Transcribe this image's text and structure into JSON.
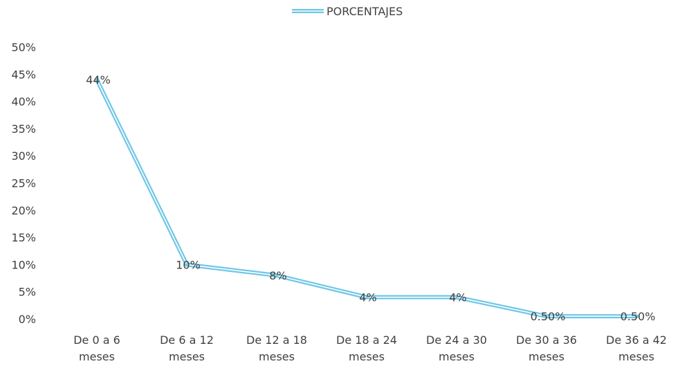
{
  "chart_data": {
    "type": "line",
    "title": "",
    "xlabel": "",
    "ylabel": "",
    "categories": [
      [
        "De 0 a 6",
        "meses"
      ],
      [
        "De 6 a 12",
        "meses"
      ],
      [
        "De 12 a 18",
        "meses"
      ],
      [
        "De 18 a 24",
        "meses"
      ],
      [
        "De 24 a 30",
        "meses"
      ],
      [
        "De 30 a 36",
        "meses"
      ],
      [
        "De 36 a 42",
        "meses"
      ]
    ],
    "series": [
      {
        "name": "PORCENTAJES",
        "values": [
          44,
          10,
          8,
          4,
          4,
          0.5,
          0.5
        ],
        "labels": [
          "44%",
          "10%",
          "8%",
          "4%",
          "4%",
          "0.50%",
          "0.50%"
        ],
        "color": "#6ec6e6"
      }
    ],
    "ylim": [
      0,
      50
    ],
    "yticks": [
      "0%",
      "5%",
      "10%",
      "15%",
      "20%",
      "25%",
      "30%",
      "35%",
      "40%",
      "45%",
      "50%"
    ],
    "legend_position": "top",
    "grid": false
  }
}
